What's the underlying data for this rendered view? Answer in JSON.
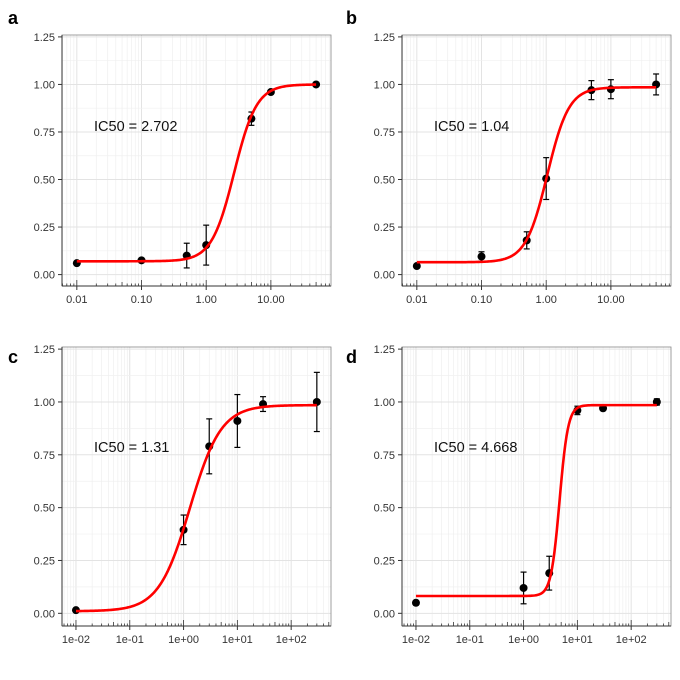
{
  "chart_data": [
    {
      "panel": "a",
      "type": "scatter",
      "annotation": "IC50 = 2.702",
      "x_scale": "log",
      "xlim": [
        0.0059,
        85
      ],
      "ylim": [
        -0.06,
        1.26
      ],
      "x_ticks": [
        0.01,
        0.1,
        1,
        10
      ],
      "x_tick_labels": [
        "0.01",
        "0.10",
        "1.00",
        "10.00"
      ],
      "y_ticks": [
        0,
        0.25,
        0.5,
        0.75,
        1,
        1.25
      ],
      "y_tick_labels": [
        "0.00",
        "0.25",
        "0.50",
        "0.75",
        "1.00",
        "1.25"
      ],
      "grid": true,
      "points": {
        "x": [
          0.01,
          0.1,
          0.5,
          1,
          5,
          10,
          50
        ],
        "y": [
          0.06,
          0.075,
          0.1,
          0.155,
          0.82,
          0.96,
          1.0
        ],
        "error": [
          0,
          0,
          0.065,
          0.105,
          0.035,
          0,
          0
        ]
      },
      "fit": {
        "bottom": 0.07,
        "top": 1.0,
        "ic50": 2.702,
        "hill": 2.5
      },
      "curve_color": "#ff0000"
    },
    {
      "panel": "b",
      "type": "scatter",
      "annotation": "IC50 = 1.04",
      "x_scale": "log",
      "xlim": [
        0.0059,
        85
      ],
      "ylim": [
        -0.06,
        1.26
      ],
      "x_ticks": [
        0.01,
        0.1,
        1,
        10
      ],
      "x_tick_labels": [
        "0.01",
        "0.10",
        "1.00",
        "10.00"
      ],
      "y_ticks": [
        0,
        0.25,
        0.5,
        0.75,
        1,
        1.25
      ],
      "y_tick_labels": [
        "0.00",
        "0.25",
        "0.50",
        "0.75",
        "1.00",
        "1.25"
      ],
      "grid": true,
      "points": {
        "x": [
          0.01,
          0.1,
          0.5,
          1,
          5,
          10,
          50
        ],
        "y": [
          0.045,
          0.095,
          0.18,
          0.505,
          0.97,
          0.975,
          1.0
        ],
        "error": [
          0,
          0.025,
          0.045,
          0.11,
          0.05,
          0.05,
          0.055
        ]
      },
      "fit": {
        "bottom": 0.065,
        "top": 0.985,
        "ic50": 1.04,
        "hill": 2.6
      },
      "curve_color": "#ff0000"
    },
    {
      "panel": "c",
      "type": "scatter",
      "annotation": "IC50 = 1.31",
      "x_scale": "log",
      "xlim": [
        0.0055,
        550
      ],
      "ylim": [
        -0.06,
        1.26
      ],
      "x_ticks": [
        0.01,
        0.1,
        1,
        10,
        100
      ],
      "x_tick_labels": [
        "1e-02",
        "1e-01",
        "1e+00",
        "1e+01",
        "1e+02"
      ],
      "y_ticks": [
        0,
        0.25,
        0.5,
        0.75,
        1,
        1.25
      ],
      "y_tick_labels": [
        "0.00",
        "0.25",
        "0.50",
        "0.75",
        "1.00",
        "1.25"
      ],
      "grid": true,
      "points": {
        "x": [
          0.01,
          1,
          3,
          10,
          30,
          300
        ],
        "y": [
          0.015,
          0.395,
          0.79,
          0.91,
          0.99,
          1.0
        ],
        "error": [
          0,
          0.07,
          0.13,
          0.125,
          0.035,
          0.14
        ]
      },
      "fit": {
        "bottom": 0.01,
        "top": 0.985,
        "ic50": 1.31,
        "hill": 1.5
      },
      "curve_color": "#ff0000"
    },
    {
      "panel": "d",
      "type": "scatter",
      "annotation": "IC50 = 4.668",
      "x_scale": "log",
      "xlim": [
        0.0055,
        550
      ],
      "ylim": [
        -0.06,
        1.26
      ],
      "x_ticks": [
        0.01,
        0.1,
        1,
        10,
        100
      ],
      "x_tick_labels": [
        "1e-02",
        "1e-01",
        "1e+00",
        "1e+01",
        "1e+02"
      ],
      "y_ticks": [
        0,
        0.25,
        0.5,
        0.75,
        1,
        1.25
      ],
      "y_tick_labels": [
        "0.00",
        "0.25",
        "0.50",
        "0.75",
        "1.00",
        "1.25"
      ],
      "grid": true,
      "points": {
        "x": [
          0.01,
          1,
          3,
          10,
          30,
          300
        ],
        "y": [
          0.05,
          0.12,
          0.19,
          0.96,
          0.97,
          1.0
        ],
        "error": [
          0,
          0.075,
          0.08,
          0.02,
          0,
          0.015
        ]
      },
      "fit": {
        "bottom": 0.082,
        "top": 0.985,
        "ic50": 4.668,
        "hill": 5.5
      },
      "curve_color": "#ff0000"
    }
  ]
}
